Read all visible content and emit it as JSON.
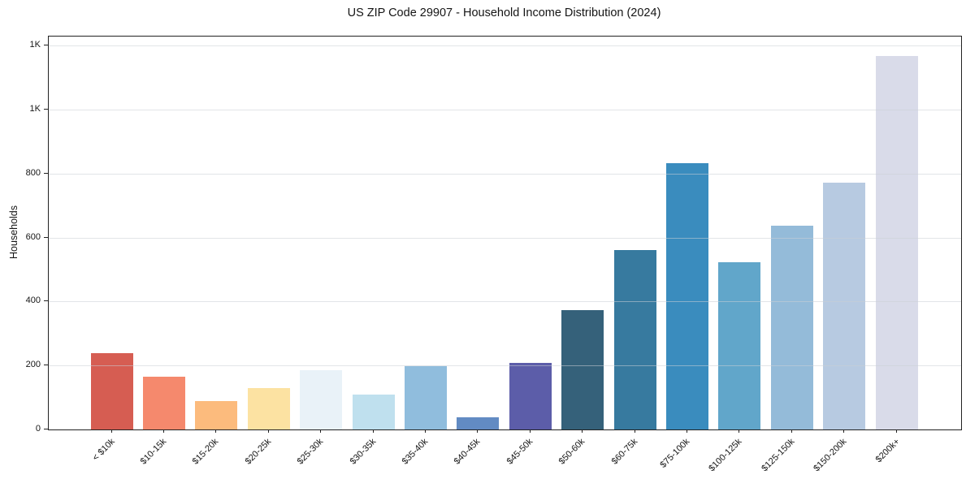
{
  "figure": {
    "title": "US ZIP Code 29907 - Household Income Distribution (2024)",
    "y_axis_label": "Households",
    "y_tick_labels": [
      "0",
      "200",
      "400",
      "600",
      "800",
      "1K",
      "1K"
    ],
    "x_tick_labels": [
      "< $10k",
      "$10-15k",
      "$15-20k",
      "$20-25k",
      "$25-30k",
      "$30-35k",
      "$35-40k",
      "$40-45k",
      "$45-50k",
      "$50-60k",
      "$60-75k",
      "$75-100k",
      "$100-125k",
      "$125-150k",
      "$150-200k",
      "$200k+"
    ]
  },
  "chart_data": {
    "type": "bar",
    "title": "US ZIP Code 29907 - Household Income Distribution (2024)",
    "xlabel": "",
    "ylabel": "Households",
    "categories": [
      "< $10k",
      "$10-15k",
      "$15-20k",
      "$20-25k",
      "$25-30k",
      "$30-35k",
      "$35-40k",
      "$40-45k",
      "$45-50k",
      "$50-60k",
      "$60-75k",
      "$75-100k",
      "$100-125k",
      "$125-150k",
      "$150-200k",
      "$200k+"
    ],
    "values": [
      238,
      165,
      90,
      130,
      185,
      108,
      198,
      38,
      208,
      374,
      561,
      832,
      523,
      638,
      771,
      1167
    ],
    "bar_colors": [
      "#d65d52",
      "#f5896d",
      "#fcbb7d",
      "#fce2a2",
      "#e9f2f8",
      "#bfe0ee",
      "#90bddd",
      "#628bc3",
      "#5c5da9",
      "#35617a",
      "#377a9f",
      "#3a8cbe",
      "#61a6ca",
      "#94bbd9",
      "#b7cae1",
      "#d9dbe9"
    ],
    "ylim": [
      0,
      1228
    ],
    "yticks": [
      {
        "value": 0,
        "label": "0"
      },
      {
        "value": 200,
        "label": "200"
      },
      {
        "value": 400,
        "label": "400"
      },
      {
        "value": 600,
        "label": "600"
      },
      {
        "value": 800,
        "label": "800"
      },
      {
        "value": 1000,
        "label": "1K"
      },
      {
        "value": 1200,
        "label": "1K"
      }
    ],
    "x_tick_rotation_deg": 45,
    "grid": "horizontal, drawn over bars",
    "legend": "none",
    "background": "#ffffff"
  }
}
